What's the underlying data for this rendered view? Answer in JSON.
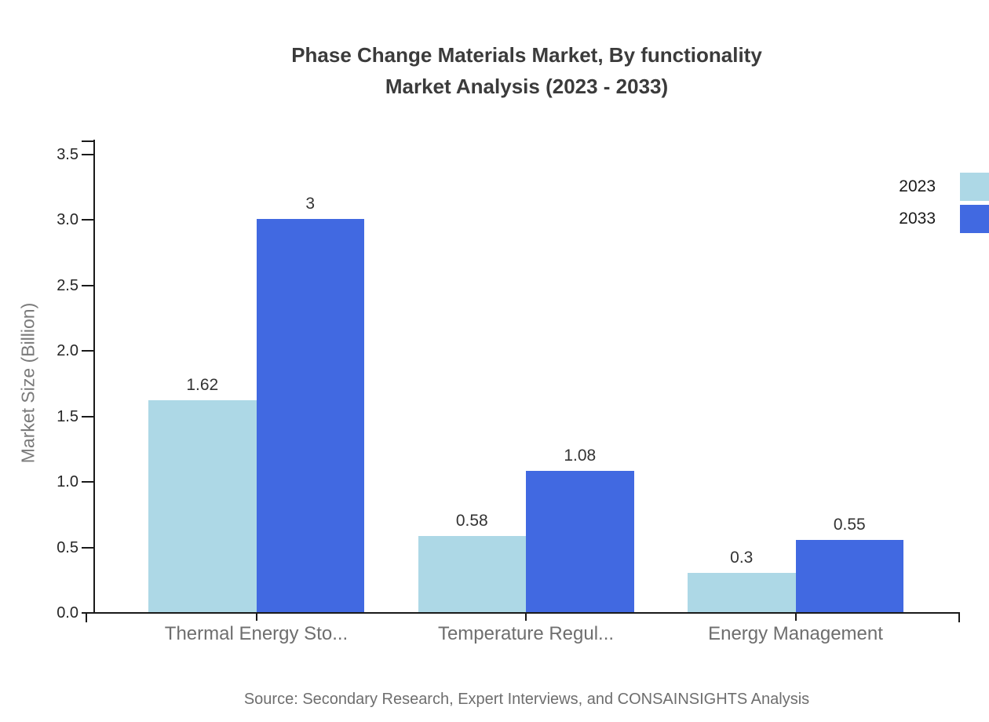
{
  "title": {
    "line1": "Phase Change Materials Market, By functionality",
    "line2": "Market Analysis (2023 - 2033)"
  },
  "source": "Source: Secondary Research, Expert Interviews, and CONSAINSIGHTS Analysis",
  "chart_data": {
    "type": "bar",
    "title": "Phase Change Materials Market, By functionality Market Analysis (2023 - 2033)",
    "categories": [
      "Thermal Energy Sto...",
      "Temperature Regul...",
      "Energy Management"
    ],
    "series": [
      {
        "name": "2023",
        "color": "#ADD8E6",
        "values": [
          1.62,
          0.58,
          0.3
        ],
        "value_labels": [
          "1.62",
          "0.58",
          "0.3"
        ]
      },
      {
        "name": "2033",
        "color": "#4169E1",
        "values": [
          3,
          1.08,
          0.55
        ],
        "value_labels": [
          "3",
          "1.08",
          "0.55"
        ]
      }
    ],
    "xlabel": "",
    "ylabel": "Market Size (Billion)",
    "ylim": [
      0,
      3.5
    ],
    "ytick_labels": [
      "0.0",
      "0.5",
      "1.0",
      "1.5",
      "2.0",
      "2.5",
      "3.0",
      "3.5"
    ],
    "grid": false,
    "legend_position": "upper-right outside plot, swatches clipped at right edge",
    "colors": {
      "background": "#ffffff",
      "axis": "#1a1a1a",
      "title_text": "#3b3b3b",
      "tick_text": "#262626",
      "category_text": "#6e6e6e",
      "value_label_text": "#333333",
      "ylabel_text": "#7a7a7a",
      "source_text": "#6e6e6e"
    }
  }
}
